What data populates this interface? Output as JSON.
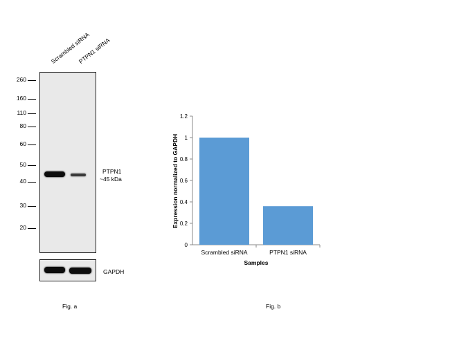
{
  "fig_a": {
    "lane_labels": [
      "Scrambled siRNA",
      "PTPN1 siRNA"
    ],
    "mw_markers": [
      "260",
      "160",
      "110",
      "80",
      "60",
      "50",
      "40",
      "30",
      "20"
    ],
    "target_label": "PTPN1",
    "target_size": "~45 kDa",
    "loading_control": "GAPDH",
    "caption": "Fig. a"
  },
  "fig_b": {
    "caption": "Fig. b"
  },
  "colors": {
    "bar": "#5b9bd5",
    "band": "#111111",
    "blot_bg": "#e9e9e9"
  },
  "chart_data": {
    "type": "bar",
    "categories": [
      "Scrambled siRNA",
      "PTPN1 siRNA"
    ],
    "values": [
      1.0,
      0.36
    ],
    "xlabel": "Samples",
    "ylabel": "Expression  normalized to GAPDH",
    "ylim": [
      0,
      1.2
    ],
    "yticks": [
      0,
      0.2,
      0.4,
      0.6,
      0.8,
      1,
      1.2
    ],
    "grid": false,
    "legend": "none"
  }
}
